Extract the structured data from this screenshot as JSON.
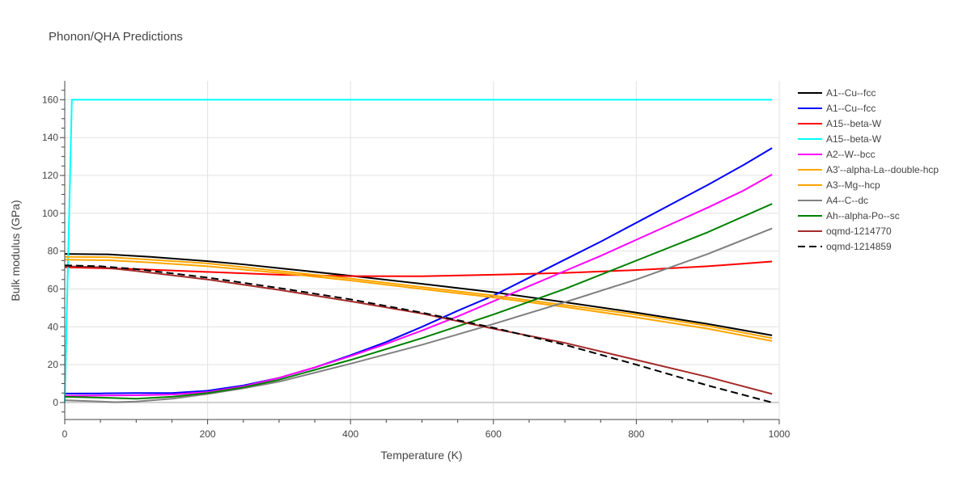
{
  "chart_data": {
    "type": "line",
    "title": "Phonon/QHA Predictions",
    "xlabel": "Temperature (K)",
    "ylabel": "Bulk modulus (GPa)",
    "xlim": [
      0,
      1000
    ],
    "ylim": [
      -9,
      170
    ],
    "x_ticks": [
      0,
      200,
      400,
      600,
      800,
      1000
    ],
    "y_ticks": [
      0,
      20,
      40,
      60,
      80,
      100,
      120,
      140,
      160
    ],
    "grid": true,
    "legend_position": "right",
    "series": [
      {
        "name": "A1--Cu--fcc",
        "color": "#000000",
        "dash": "solid",
        "x": [
          0,
          60,
          120,
          200,
          250,
          300,
          400,
          500,
          600,
          700,
          800,
          900,
          990
        ],
        "y": [
          78.5,
          78.3,
          77,
          74.7,
          73,
          71,
          67,
          62.7,
          58.3,
          53,
          47.5,
          41.5,
          35.5
        ]
      },
      {
        "name": "A1--Cu--fcc",
        "color": "#0000ff",
        "dash": "solid",
        "x": [
          0,
          50,
          100,
          150,
          200,
          250,
          300,
          350,
          400,
          450,
          500,
          550,
          600,
          650,
          700,
          750,
          800,
          850,
          900,
          950,
          990
        ],
        "y": [
          4.7,
          4.8,
          5,
          5,
          6.2,
          9,
          13,
          18.5,
          25,
          32,
          40,
          48.5,
          56.5,
          66,
          75.5,
          85,
          95,
          105,
          115,
          125.5,
          134.5
        ]
      },
      {
        "name": "A15--beta-W",
        "color": "#ff0000",
        "dash": "solid",
        "x": [
          0,
          100,
          200,
          300,
          400,
          500,
          600,
          700,
          800,
          900,
          990
        ],
        "y": [
          71.5,
          70.5,
          69,
          67.5,
          66.8,
          66.7,
          67.5,
          68.5,
          70,
          72,
          74.5
        ]
      },
      {
        "name": "A15--beta-W",
        "color": "#00ffff",
        "dash": "solid",
        "x": [
          0,
          10,
          990
        ],
        "y": [
          0,
          160,
          160
        ]
      },
      {
        "name": "A2--W--bcc",
        "color": "#ff00ff",
        "dash": "solid",
        "x": [
          0,
          50,
          100,
          150,
          200,
          250,
          300,
          350,
          400,
          450,
          500,
          550,
          600,
          650,
          700,
          750,
          800,
          850,
          900,
          950,
          990
        ],
        "y": [
          3.5,
          3.7,
          3.8,
          4.2,
          5.5,
          8.5,
          13,
          18.5,
          24.5,
          31,
          38,
          45.5,
          53.5,
          61.5,
          69.5,
          77.5,
          86,
          94.5,
          103,
          112,
          120.5
        ]
      },
      {
        "name": "A3'--alpha-La--double-hcp",
        "color": "#ffa500",
        "dash": "solid",
        "x": [
          0,
          60,
          120,
          200,
          300,
          400,
          500,
          600,
          700,
          800,
          900,
          990
        ],
        "y": [
          77,
          76.8,
          75.5,
          73.5,
          69.5,
          65.5,
          61,
          56.5,
          51.5,
          46.5,
          40.5,
          34
        ]
      },
      {
        "name": "A3--Mg--hcp",
        "color": "#ffa500",
        "dash": "solid",
        "x": [
          0,
          60,
          120,
          200,
          300,
          400,
          500,
          600,
          700,
          800,
          900,
          990
        ],
        "y": [
          75.5,
          75.2,
          74,
          72,
          68.5,
          64.5,
          60,
          55.5,
          50.5,
          45,
          39,
          32.5
        ]
      },
      {
        "name": "A4--C--dc",
        "color": "#808080",
        "dash": "solid",
        "x": [
          0,
          70,
          100,
          150,
          200,
          250,
          300,
          400,
          500,
          600,
          700,
          800,
          900,
          990
        ],
        "y": [
          1.2,
          0.2,
          0.5,
          2,
          4.5,
          7.5,
          11,
          20.5,
          30.5,
          41.5,
          53,
          65,
          78.5,
          92
        ]
      },
      {
        "name": "Ah--alpha-Po--sc",
        "color": "#008000",
        "dash": "solid",
        "x": [
          0,
          50,
          100,
          150,
          200,
          250,
          300,
          400,
          500,
          600,
          700,
          800,
          900,
          990
        ],
        "y": [
          3,
          2.6,
          2,
          3,
          5,
          8,
          12,
          22.5,
          34,
          46.5,
          60,
          75,
          90,
          105
        ]
      },
      {
        "name": "oqmd-1214770",
        "color": "#a52a2a",
        "dash": "solid",
        "x": [
          0,
          50,
          100,
          200,
          300,
          400,
          500,
          550,
          600,
          700,
          800,
          900,
          990
        ],
        "y": [
          72,
          71.5,
          69.5,
          65,
          59.5,
          53.5,
          47,
          43,
          39,
          31.5,
          22.5,
          13.5,
          4.5
        ]
      },
      {
        "name": "oqmd-1214859",
        "color": "#000000",
        "dash": "dash",
        "x": [
          0,
          50,
          100,
          200,
          300,
          400,
          500,
          550,
          600,
          700,
          800,
          900,
          990
        ],
        "y": [
          72.5,
          72,
          70.5,
          66,
          60.5,
          54.5,
          47.5,
          43.5,
          39.5,
          30.5,
          20,
          9,
          0
        ]
      }
    ]
  }
}
